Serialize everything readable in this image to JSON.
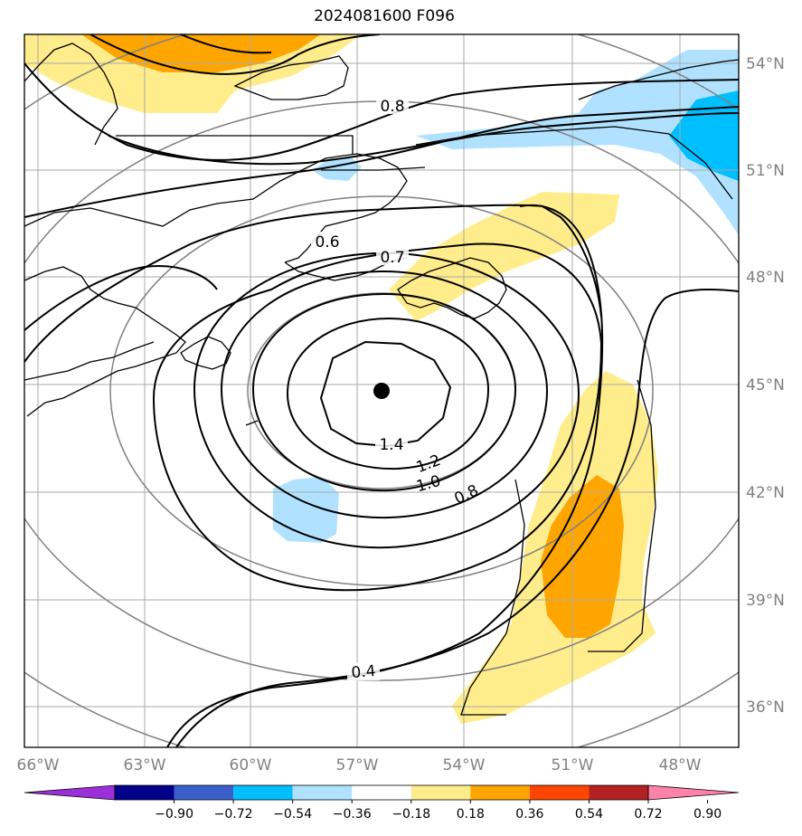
{
  "title": "2024081600 F096",
  "lon_labels": [
    "66°W",
    "63°W",
    "60°W",
    "57°W",
    "54°W",
    "51°W",
    "48°W"
  ],
  "lat_labels": [
    "54°N",
    "51°N",
    "48°N",
    "45°N",
    "42°N",
    "39°N",
    "36°N"
  ],
  "colorbar": {
    "ticks": [
      "−0.90",
      "−0.72",
      "−0.54",
      "−0.36",
      "−0.18",
      "0.18",
      "0.36",
      "0.54",
      "0.72",
      "0.90"
    ],
    "colors": [
      "#9b30d9",
      "#00008b",
      "#3a5fcd",
      "#00bfff",
      "#b0e2ff",
      "#ffffff",
      "#ffec8b",
      "#ffa500",
      "#ff4500",
      "#b22222",
      "#ff82ab"
    ]
  },
  "contour_labels": [
    "0.8",
    "0.6",
    "0.7",
    "1.4",
    "1.2",
    "1.0",
    "0.8",
    "0.4"
  ],
  "center_marker": "low-center-dot",
  "colors": {
    "contour": "#000000",
    "grid": "#aaaaaa",
    "coast": "#000000",
    "range_rings": "#808080"
  }
}
